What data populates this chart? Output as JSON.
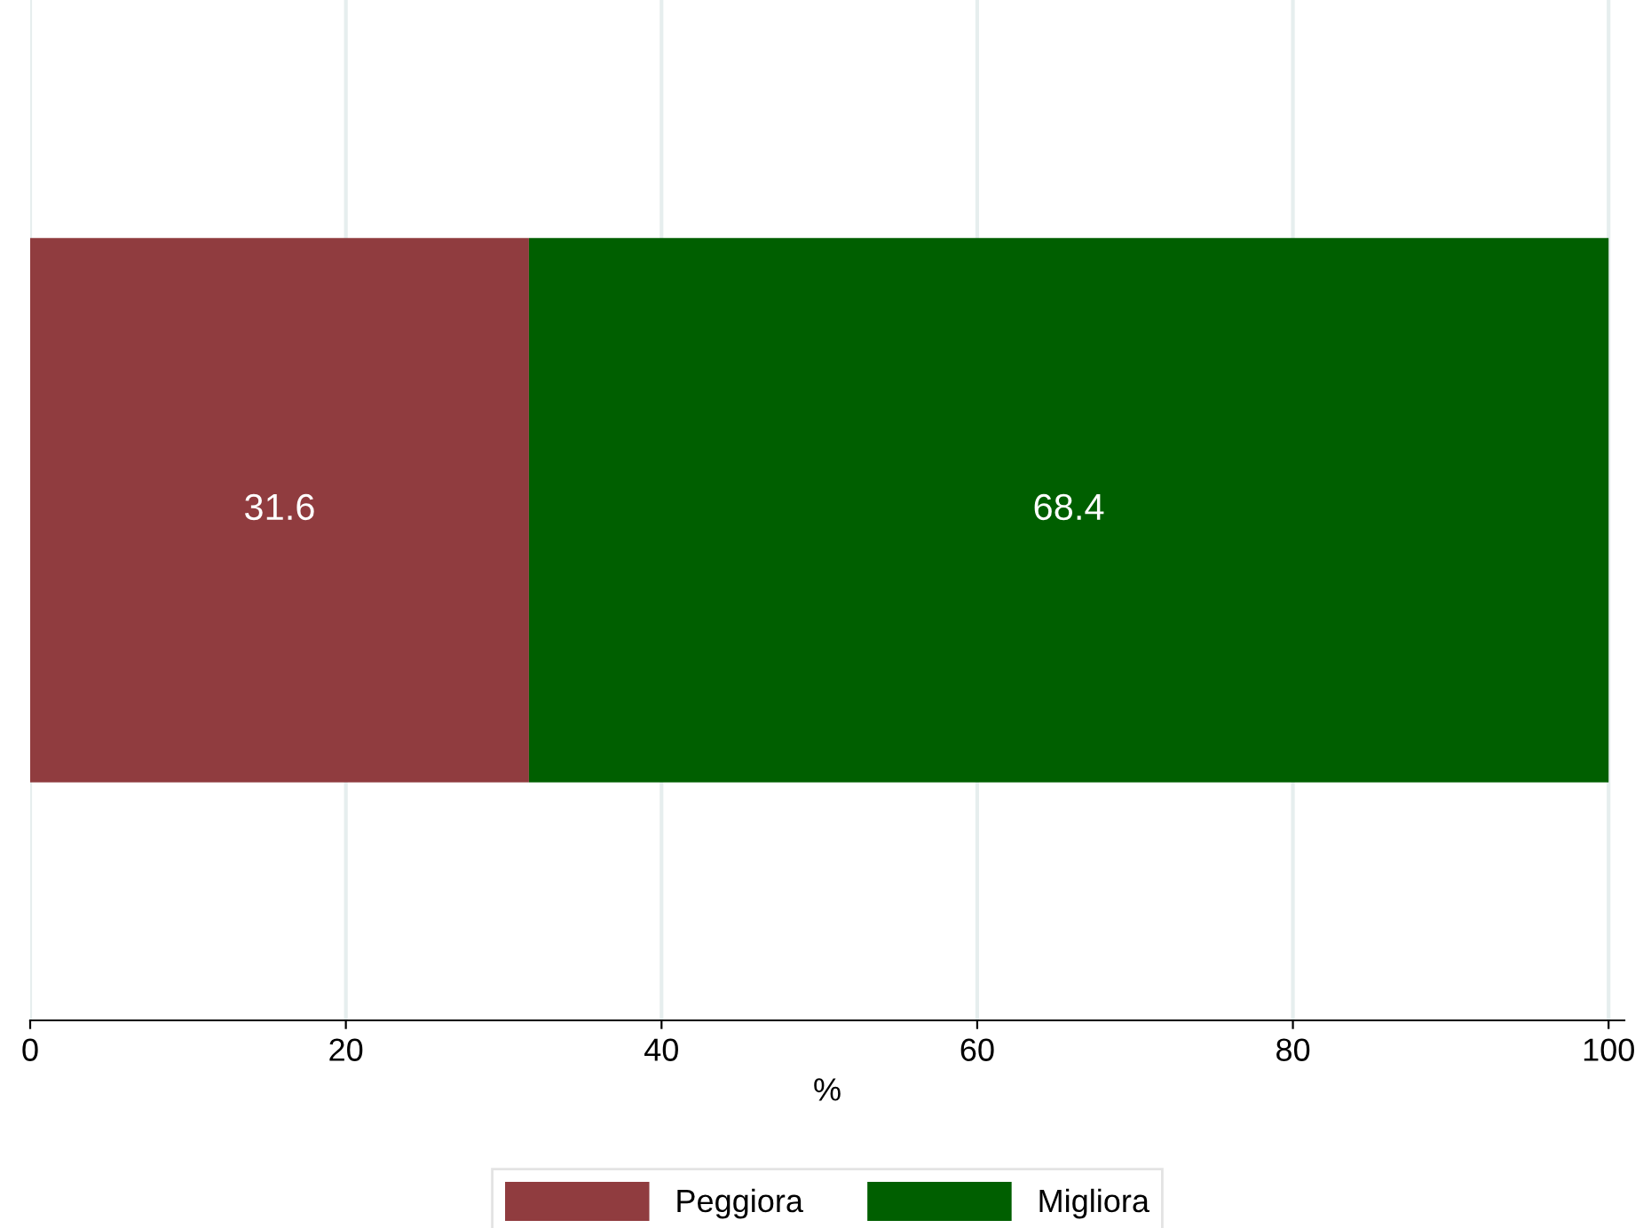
{
  "chart_data": {
    "type": "bar",
    "orientation": "horizontal",
    "stacked": true,
    "categories": [
      null
    ],
    "series": [
      {
        "name": "Peggiora",
        "color": "#903c3f",
        "values": [
          31.6
        ]
      },
      {
        "name": "Migliora",
        "color": "#005f00",
        "values": [
          68.4
        ]
      }
    ],
    "xlabel": "%",
    "xlim": [
      0,
      101
    ],
    "xticks": [
      0,
      20,
      40,
      60,
      80,
      100
    ],
    "grid": "x",
    "legend": "bottom",
    "data_labels": true
  }
}
